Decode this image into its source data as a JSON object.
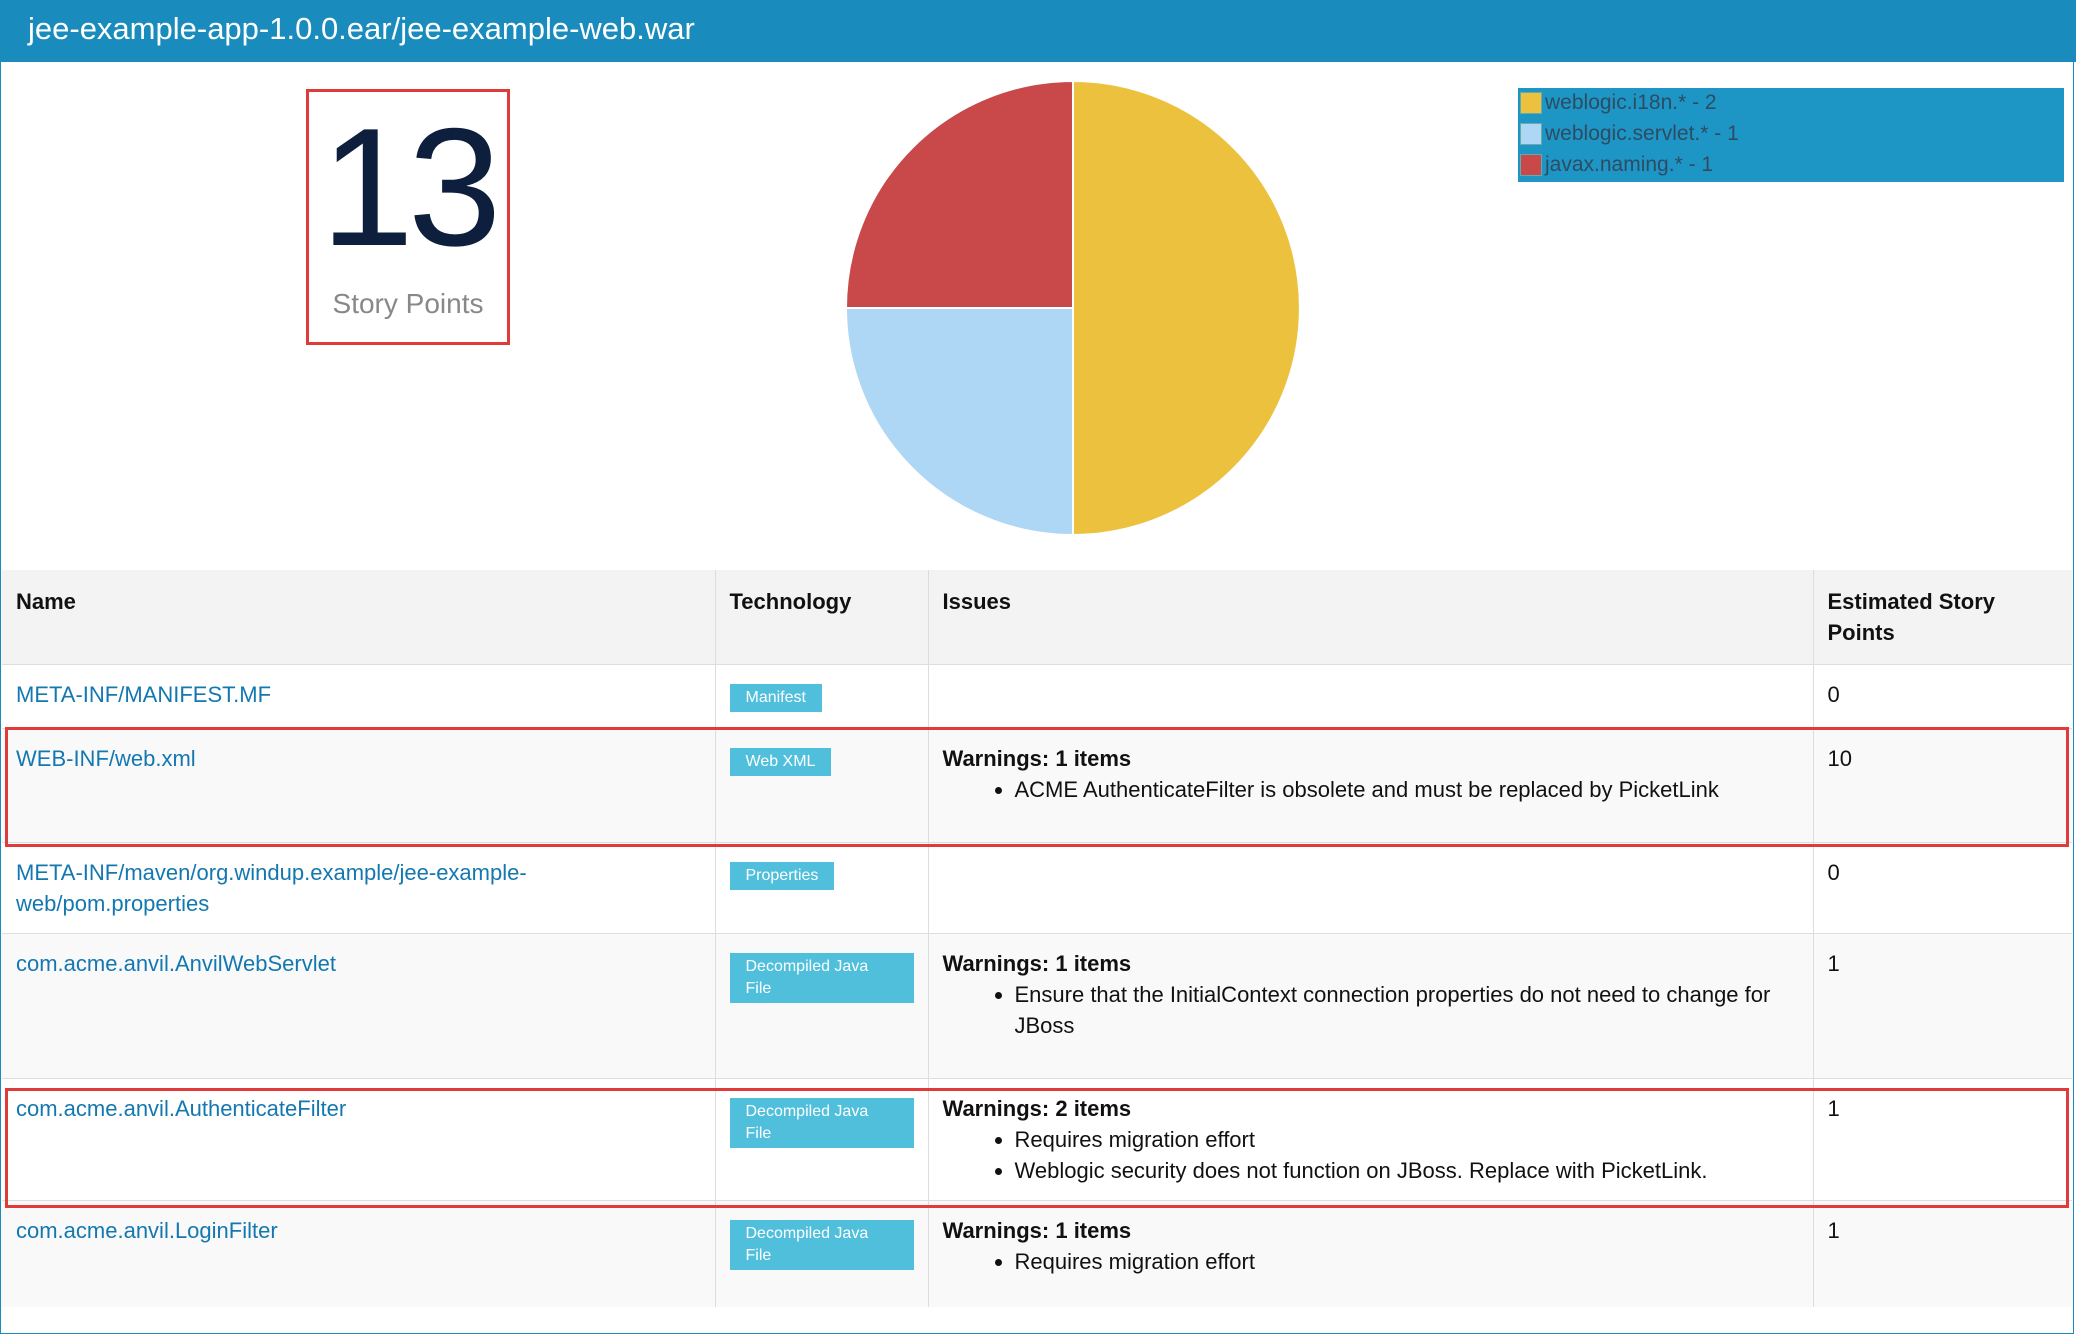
{
  "header": {
    "title": "jee-example-app-1.0.0.ear/jee-example-web.war"
  },
  "story_points": {
    "value": "13",
    "label": "Story Points"
  },
  "chart_data": {
    "type": "pie",
    "slices": [
      {
        "label": "weblogic.i18n.* - 2",
        "value": 2,
        "color": "#ebc13e"
      },
      {
        "label": "weblogic.servlet.* - 1",
        "value": 1,
        "color": "#aed6f5"
      },
      {
        "label": "javax.naming.* - 1",
        "value": 1,
        "color": "#c9494a"
      }
    ],
    "legend_position": "top-right"
  },
  "table": {
    "headers": {
      "name": "Name",
      "technology": "Technology",
      "issues": "Issues",
      "points": "Estimated Story Points"
    },
    "rows": [
      {
        "name": "META-INF/MANIFEST.MF",
        "technology": "Manifest",
        "issues_title": "",
        "issues": [],
        "points": "0"
      },
      {
        "name": "WEB-INF/web.xml",
        "technology": "Web XML",
        "issues_title": "Warnings: 1 items",
        "issues": [
          "ACME AuthenticateFilter is obsolete and must be replaced by PicketLink"
        ],
        "points": "10"
      },
      {
        "name": "META-INF/maven/org.windup.example/jee-example-web/pom.properties",
        "technology": "Properties",
        "issues_title": "",
        "issues": [],
        "points": "0"
      },
      {
        "name": "com.acme.anvil.AnvilWebServlet",
        "technology": "Decompiled Java File",
        "issues_title": "Warnings: 1 items",
        "issues": [
          "Ensure that the InitialContext connection properties do not need to change for JBoss"
        ],
        "points": "1"
      },
      {
        "name": "com.acme.anvil.AuthenticateFilter",
        "technology": "Decompiled Java File",
        "issues_title": "Warnings: 2 items",
        "issues": [
          "Requires migration effort",
          "Weblogic security does not function on JBoss. Replace with PicketLink."
        ],
        "points": "1"
      },
      {
        "name": "com.acme.anvil.LoginFilter",
        "technology": "Decompiled Java File",
        "issues_title": "Warnings: 1 items",
        "issues": [
          "Requires migration effort"
        ],
        "points": "1"
      }
    ]
  }
}
